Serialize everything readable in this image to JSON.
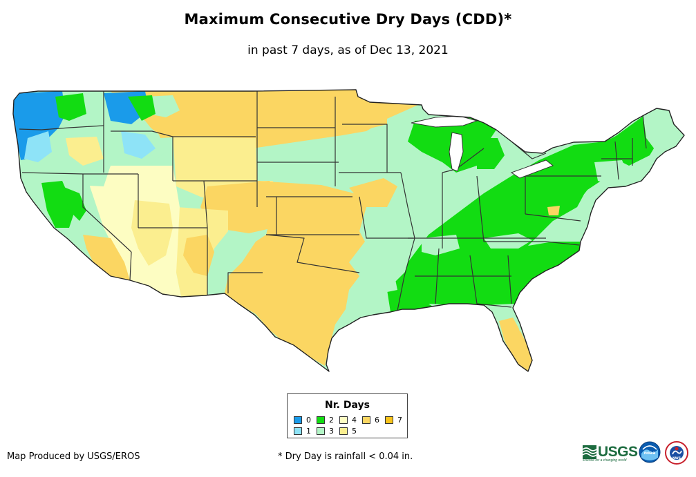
{
  "title": "Maximum Consecutive Dry Days (CDD)*",
  "subtitle": "in past 7 days, as of Dec 13, 2021",
  "legend": {
    "title": "Nr. Days",
    "items": [
      {
        "label": "0",
        "color": "#1a9bea"
      },
      {
        "label": "1",
        "color": "#8ee3f7"
      },
      {
        "label": "2",
        "color": "#12dc12"
      },
      {
        "label": "3",
        "color": "#b3f5c6"
      },
      {
        "label": "4",
        "color": "#fdfdc2"
      },
      {
        "label": "5",
        "color": "#fbee8f"
      },
      {
        "label": "6",
        "color": "#fbd662"
      },
      {
        "label": "7",
        "color": "#f9c31b"
      }
    ]
  },
  "credit": "Map Produced by USGS/EROS",
  "footnote": "* Dry Day is rainfall < 0.04 in.",
  "logos": {
    "usgs_text": "USGS",
    "usgs_tagline": "science for a changing world",
    "noaa_text": "noaa",
    "nws_text": "NWS"
  }
}
